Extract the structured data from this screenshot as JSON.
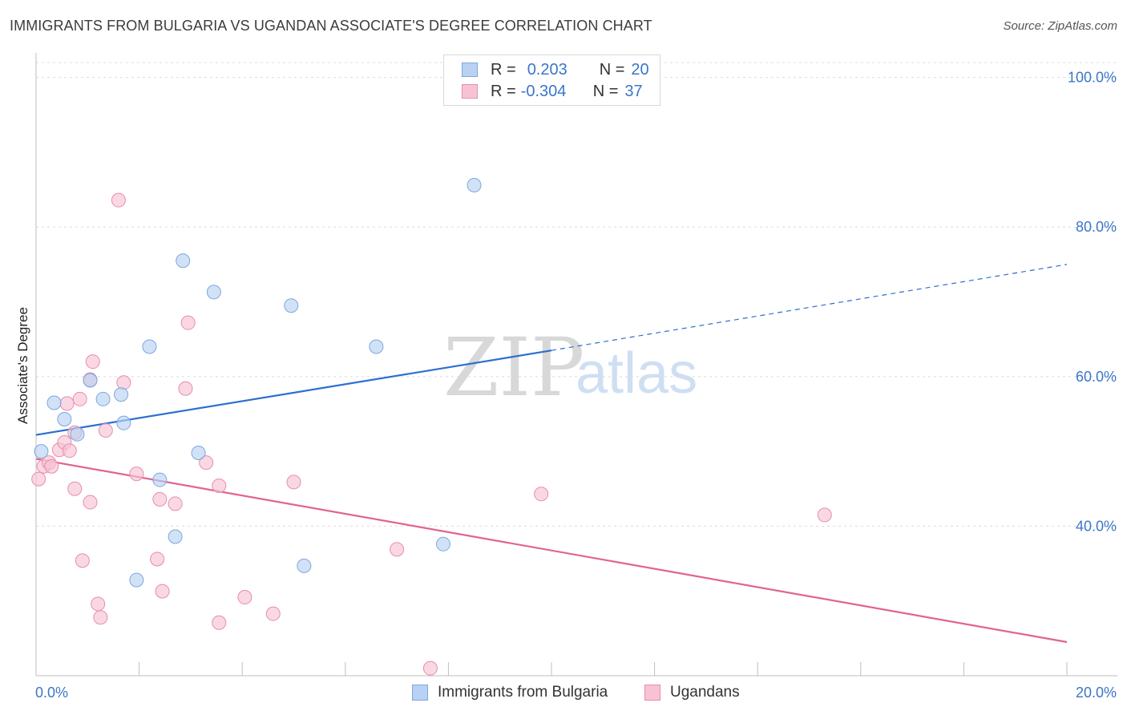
{
  "title": "IMMIGRANTS FROM BULGARIA VS UGANDAN ASSOCIATE'S DEGREE CORRELATION CHART",
  "source": "Source: ZipAtlas.com",
  "watermark": {
    "zip": "ZIP",
    "atlas": "atlas"
  },
  "legend": {
    "rows": [
      {
        "r_label": "R =",
        "r_value": "0.203",
        "n_label": "N =",
        "n_value": "20"
      },
      {
        "r_label": "R =",
        "r_value": "-0.304",
        "n_label": "N =",
        "n_value": "37"
      }
    ]
  },
  "bottom_legend": {
    "blue": "Immigrants from Bulgaria",
    "pink": "Ugandans"
  },
  "colors": {
    "blue_fill": "#b9d2f3",
    "blue_stroke": "#7da7dd",
    "blue_line": "#2c6fcf",
    "pink_fill": "#f7c3d4",
    "pink_stroke": "#e88cab",
    "pink_line": "#e0648f",
    "grid": "#dcdcdc",
    "tick_text": "#3b76c8"
  },
  "chart_data": {
    "type": "scatter",
    "title": "IMMIGRANTS FROM BULGARIA VS UGANDAN ASSOCIATE'S DEGREE CORRELATION CHART",
    "xlabel": "",
    "ylabel": "Associate's Degree",
    "xlim": [
      0,
      20
    ],
    "ylim": [
      20,
      102
    ],
    "x_tick_labels": [
      "0.0%",
      "20.0%"
    ],
    "y_tick_labels": [
      "40.0%",
      "60.0%",
      "80.0%",
      "100.0%"
    ],
    "y_ticks": [
      40,
      60,
      80,
      100
    ],
    "grid": true,
    "series": [
      {
        "name": "Immigrants from Bulgaria",
        "color": "#b9d2f3",
        "points": [
          [
            0.1,
            50.0
          ],
          [
            0.35,
            56.5
          ],
          [
            0.55,
            54.3
          ],
          [
            0.8,
            52.3
          ],
          [
            1.05,
            59.5
          ],
          [
            1.3,
            57.0
          ],
          [
            1.65,
            57.6
          ],
          [
            1.7,
            53.8
          ],
          [
            1.95,
            32.8
          ],
          [
            2.2,
            64.0
          ],
          [
            2.4,
            46.2
          ],
          [
            2.7,
            38.6
          ],
          [
            2.85,
            75.5
          ],
          [
            3.15,
            49.8
          ],
          [
            3.45,
            71.3
          ],
          [
            4.95,
            69.5
          ],
          [
            5.2,
            34.7
          ],
          [
            6.6,
            64.0
          ],
          [
            7.9,
            37.6
          ],
          [
            8.5,
            85.6
          ]
        ],
        "trend": {
          "x": [
            0,
            10
          ],
          "y": [
            52.2,
            63.5
          ],
          "dashed_extension": {
            "x": [
              10,
              20
            ],
            "y": [
              63.5,
              75.0
            ]
          }
        }
      },
      {
        "name": "Ugandans",
        "color": "#f7c3d4",
        "points": [
          [
            0.05,
            46.3
          ],
          [
            0.15,
            48.0
          ],
          [
            0.25,
            48.5
          ],
          [
            0.3,
            48.0
          ],
          [
            0.45,
            50.2
          ],
          [
            0.55,
            51.2
          ],
          [
            0.65,
            50.1
          ],
          [
            0.6,
            56.4
          ],
          [
            0.75,
            52.5
          ],
          [
            0.75,
            45.0
          ],
          [
            0.85,
            57.0
          ],
          [
            0.9,
            35.4
          ],
          [
            1.05,
            59.6
          ],
          [
            1.05,
            43.2
          ],
          [
            1.1,
            62.0
          ],
          [
            1.2,
            29.6
          ],
          [
            1.25,
            27.8
          ],
          [
            1.35,
            52.8
          ],
          [
            1.6,
            83.6
          ],
          [
            1.7,
            59.2
          ],
          [
            1.95,
            47.0
          ],
          [
            2.35,
            35.6
          ],
          [
            2.4,
            43.6
          ],
          [
            2.45,
            31.3
          ],
          [
            2.7,
            43.0
          ],
          [
            2.9,
            58.4
          ],
          [
            2.95,
            67.2
          ],
          [
            3.3,
            48.5
          ],
          [
            3.55,
            27.1
          ],
          [
            3.55,
            45.4
          ],
          [
            4.05,
            30.5
          ],
          [
            4.6,
            28.3
          ],
          [
            5.0,
            45.9
          ],
          [
            7.0,
            36.9
          ],
          [
            7.65,
            21.0
          ],
          [
            9.8,
            44.3
          ],
          [
            15.3,
            41.5
          ]
        ],
        "trend": {
          "x": [
            0,
            20
          ],
          "y": [
            49.0,
            24.5
          ]
        }
      }
    ]
  }
}
